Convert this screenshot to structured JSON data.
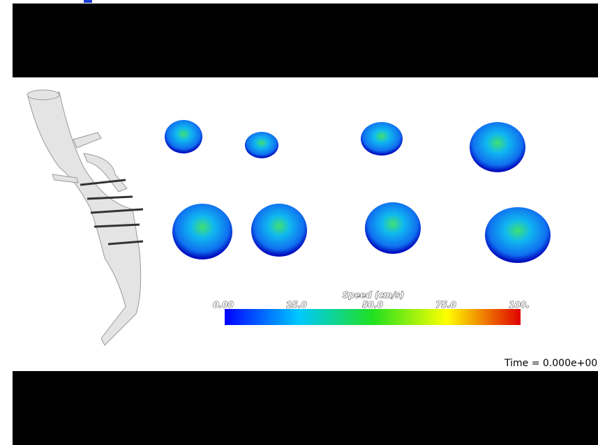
{
  "colorbar": {
    "title": "Speed (cm/s)",
    "labels": [
      "0.00",
      "25.0",
      "50.0",
      "75.0",
      "100."
    ]
  },
  "time_label": "Time = 0.000e+00"
}
